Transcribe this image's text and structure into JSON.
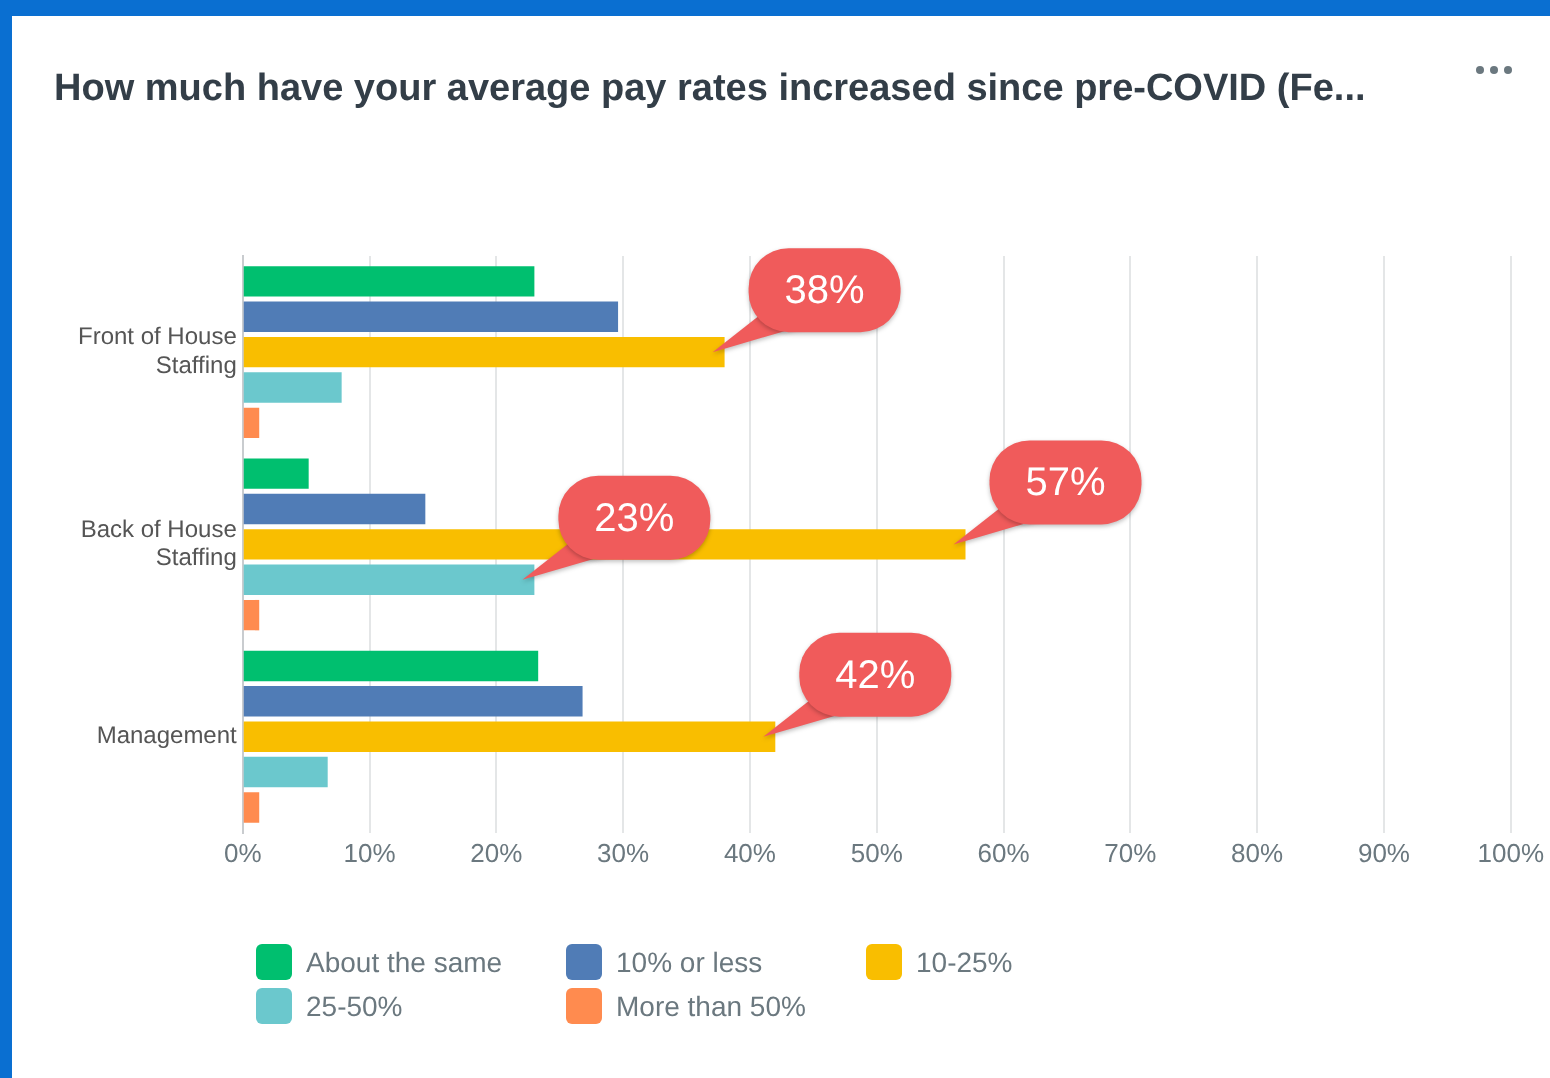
{
  "chart_data": {
    "type": "bar",
    "orientation": "horizontal",
    "title": "How much have your average pay rates increased since pre-COVID (Fe...",
    "categories": [
      "Front of House\nStaffing",
      "Back of House\nStaffing",
      "Management"
    ],
    "series": [
      {
        "name": "About the same",
        "color": "#00bf6f",
        "values": [
          23,
          5.2,
          23.3
        ]
      },
      {
        "name": "10% or less",
        "color": "#507cb6",
        "values": [
          29.6,
          14.4,
          26.8
        ]
      },
      {
        "name": "10-25%",
        "color": "#f9be00",
        "values": [
          38,
          57,
          42
        ],
        "value_labels": [
          "38%",
          "57%",
          "42%"
        ]
      },
      {
        "name": "25-50%",
        "color": "#6bc8cd",
        "values": [
          7.8,
          23,
          6.7
        ],
        "value_labels": [
          null,
          "23%",
          null
        ]
      },
      {
        "name": "More than 50%",
        "color": "#ff8b4f",
        "values": [
          1.3,
          1.3,
          1.3
        ]
      }
    ],
    "xlim": [
      0,
      100
    ],
    "xticks": [
      {
        "value": 0,
        "label": "0%"
      },
      {
        "value": 10,
        "label": "10%"
      },
      {
        "value": 20,
        "label": "20%"
      },
      {
        "value": 30,
        "label": "30%"
      },
      {
        "value": 40,
        "label": "40%"
      },
      {
        "value": 50,
        "label": "50%"
      },
      {
        "value": 60,
        "label": "60%"
      },
      {
        "value": 70,
        "label": "70%"
      },
      {
        "value": 80,
        "label": "80%"
      },
      {
        "value": 90,
        "label": "90%"
      },
      {
        "value": 100,
        "label": "100%"
      }
    ],
    "grid": "x",
    "legend": "bottom"
  }
}
